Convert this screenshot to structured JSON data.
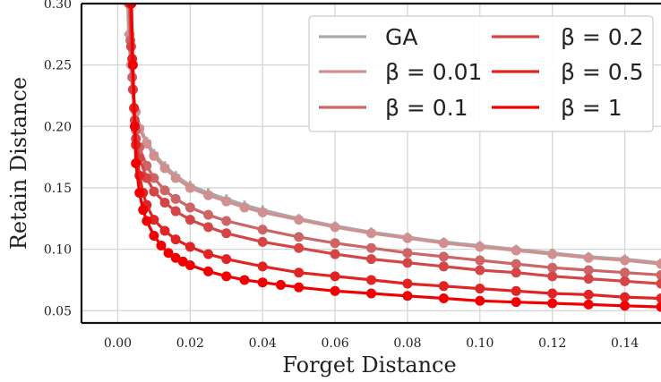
{
  "chart_data": {
    "type": "line",
    "xlabel": "Forget Distance",
    "ylabel": "Retain Distance",
    "xlim": [
      -0.01,
      0.15
    ],
    "ylim": [
      0.04,
      0.3
    ],
    "xticks": [
      0.0,
      0.02,
      0.04,
      0.06,
      0.08,
      0.1,
      0.12,
      0.14
    ],
    "xtick_labels": [
      "0.00",
      "0.02",
      "0.04",
      "0.06",
      "0.08",
      "0.10",
      "0.12",
      "0.14"
    ],
    "yticks": [
      0.05,
      0.1,
      0.15,
      0.2,
      0.25,
      0.3
    ],
    "ytick_labels": [
      "0.05",
      "0.10",
      "0.15",
      "0.20",
      "0.25",
      "0.30"
    ],
    "grid": true,
    "legend_position": "top-right",
    "series": [
      {
        "name": "GA",
        "color": "#a9a9a9",
        "marker": "plus",
        "x": [
          0.0027,
          0.003,
          0.0035,
          0.004,
          0.005,
          0.006,
          0.008,
          0.01,
          0.013,
          0.016,
          0.02,
          0.025,
          0.03,
          0.035,
          0.04,
          0.05,
          0.06,
          0.07,
          0.08,
          0.09,
          0.1,
          0.11,
          0.12,
          0.13,
          0.14,
          0.15
        ],
        "y": [
          0.3,
          0.275,
          0.25,
          0.23,
          0.212,
          0.2,
          0.188,
          0.178,
          0.168,
          0.16,
          0.152,
          0.146,
          0.141,
          0.136,
          0.132,
          0.125,
          0.119,
          0.114,
          0.11,
          0.106,
          0.103,
          0.1,
          0.097,
          0.094,
          0.092,
          0.089
        ]
      },
      {
        "name": "β = 0.01",
        "color": "#d09090",
        "marker": "circle",
        "x": [
          0.003,
          0.0033,
          0.0037,
          0.0042,
          0.005,
          0.006,
          0.008,
          0.01,
          0.013,
          0.016,
          0.02,
          0.025,
          0.03,
          0.035,
          0.04,
          0.05,
          0.06,
          0.07,
          0.08,
          0.09,
          0.1,
          0.11,
          0.12,
          0.13,
          0.14,
          0.15
        ],
        "y": [
          0.3,
          0.275,
          0.25,
          0.23,
          0.212,
          0.198,
          0.186,
          0.176,
          0.166,
          0.158,
          0.15,
          0.144,
          0.139,
          0.134,
          0.13,
          0.124,
          0.118,
          0.113,
          0.109,
          0.105,
          0.102,
          0.099,
          0.096,
          0.093,
          0.091,
          0.088
        ]
      },
      {
        "name": "β = 0.1",
        "color": "#cc6666",
        "marker": "circle",
        "x": [
          0.0032,
          0.0035,
          0.004,
          0.0045,
          0.005,
          0.006,
          0.008,
          0.01,
          0.013,
          0.016,
          0.02,
          0.025,
          0.03,
          0.04,
          0.05,
          0.06,
          0.07,
          0.08,
          0.09,
          0.1,
          0.11,
          0.12,
          0.13,
          0.14,
          0.15
        ],
        "y": [
          0.3,
          0.27,
          0.24,
          0.215,
          0.197,
          0.183,
          0.168,
          0.158,
          0.148,
          0.141,
          0.134,
          0.128,
          0.123,
          0.116,
          0.11,
          0.105,
          0.101,
          0.097,
          0.094,
          0.091,
          0.088,
          0.085,
          0.083,
          0.081,
          0.079
        ]
      },
      {
        "name": "β = 0.2",
        "color": "#d64545",
        "marker": "circle",
        "x": [
          0.0034,
          0.0037,
          0.0042,
          0.0047,
          0.005,
          0.006,
          0.008,
          0.01,
          0.013,
          0.016,
          0.02,
          0.025,
          0.03,
          0.04,
          0.05,
          0.06,
          0.07,
          0.08,
          0.09,
          0.1,
          0.11,
          0.12,
          0.13,
          0.14,
          0.15
        ],
        "y": [
          0.3,
          0.265,
          0.23,
          0.205,
          0.19,
          0.174,
          0.158,
          0.147,
          0.138,
          0.131,
          0.124,
          0.118,
          0.113,
          0.106,
          0.101,
          0.096,
          0.092,
          0.089,
          0.086,
          0.083,
          0.081,
          0.078,
          0.076,
          0.074,
          0.072
        ]
      },
      {
        "name": "β = 0.5",
        "color": "#e02424",
        "marker": "circle",
        "x": [
          0.0036,
          0.004,
          0.0045,
          0.005,
          0.006,
          0.007,
          0.008,
          0.01,
          0.013,
          0.016,
          0.02,
          0.025,
          0.03,
          0.04,
          0.05,
          0.06,
          0.07,
          0.08,
          0.09,
          0.1,
          0.11,
          0.12,
          0.13,
          0.14,
          0.15
        ],
        "y": [
          0.3,
          0.255,
          0.215,
          0.185,
          0.16,
          0.146,
          0.136,
          0.124,
          0.115,
          0.108,
          0.102,
          0.096,
          0.092,
          0.086,
          0.081,
          0.078,
          0.075,
          0.072,
          0.07,
          0.068,
          0.066,
          0.064,
          0.063,
          0.061,
          0.06
        ]
      },
      {
        "name": "β = 1",
        "color": "#f00000",
        "marker": "circle",
        "x": [
          0.0038,
          0.0042,
          0.0047,
          0.005,
          0.006,
          0.007,
          0.008,
          0.01,
          0.012,
          0.014,
          0.016,
          0.018,
          0.02,
          0.025,
          0.03,
          0.035,
          0.04,
          0.045,
          0.05,
          0.06,
          0.07,
          0.08,
          0.09,
          0.1,
          0.11,
          0.12,
          0.13,
          0.14,
          0.15
        ],
        "y": [
          0.3,
          0.25,
          0.2,
          0.17,
          0.146,
          0.132,
          0.123,
          0.111,
          0.103,
          0.097,
          0.093,
          0.09,
          0.087,
          0.082,
          0.078,
          0.075,
          0.073,
          0.071,
          0.069,
          0.066,
          0.064,
          0.062,
          0.06,
          0.058,
          0.057,
          0.056,
          0.055,
          0.054,
          0.053
        ]
      }
    ]
  }
}
